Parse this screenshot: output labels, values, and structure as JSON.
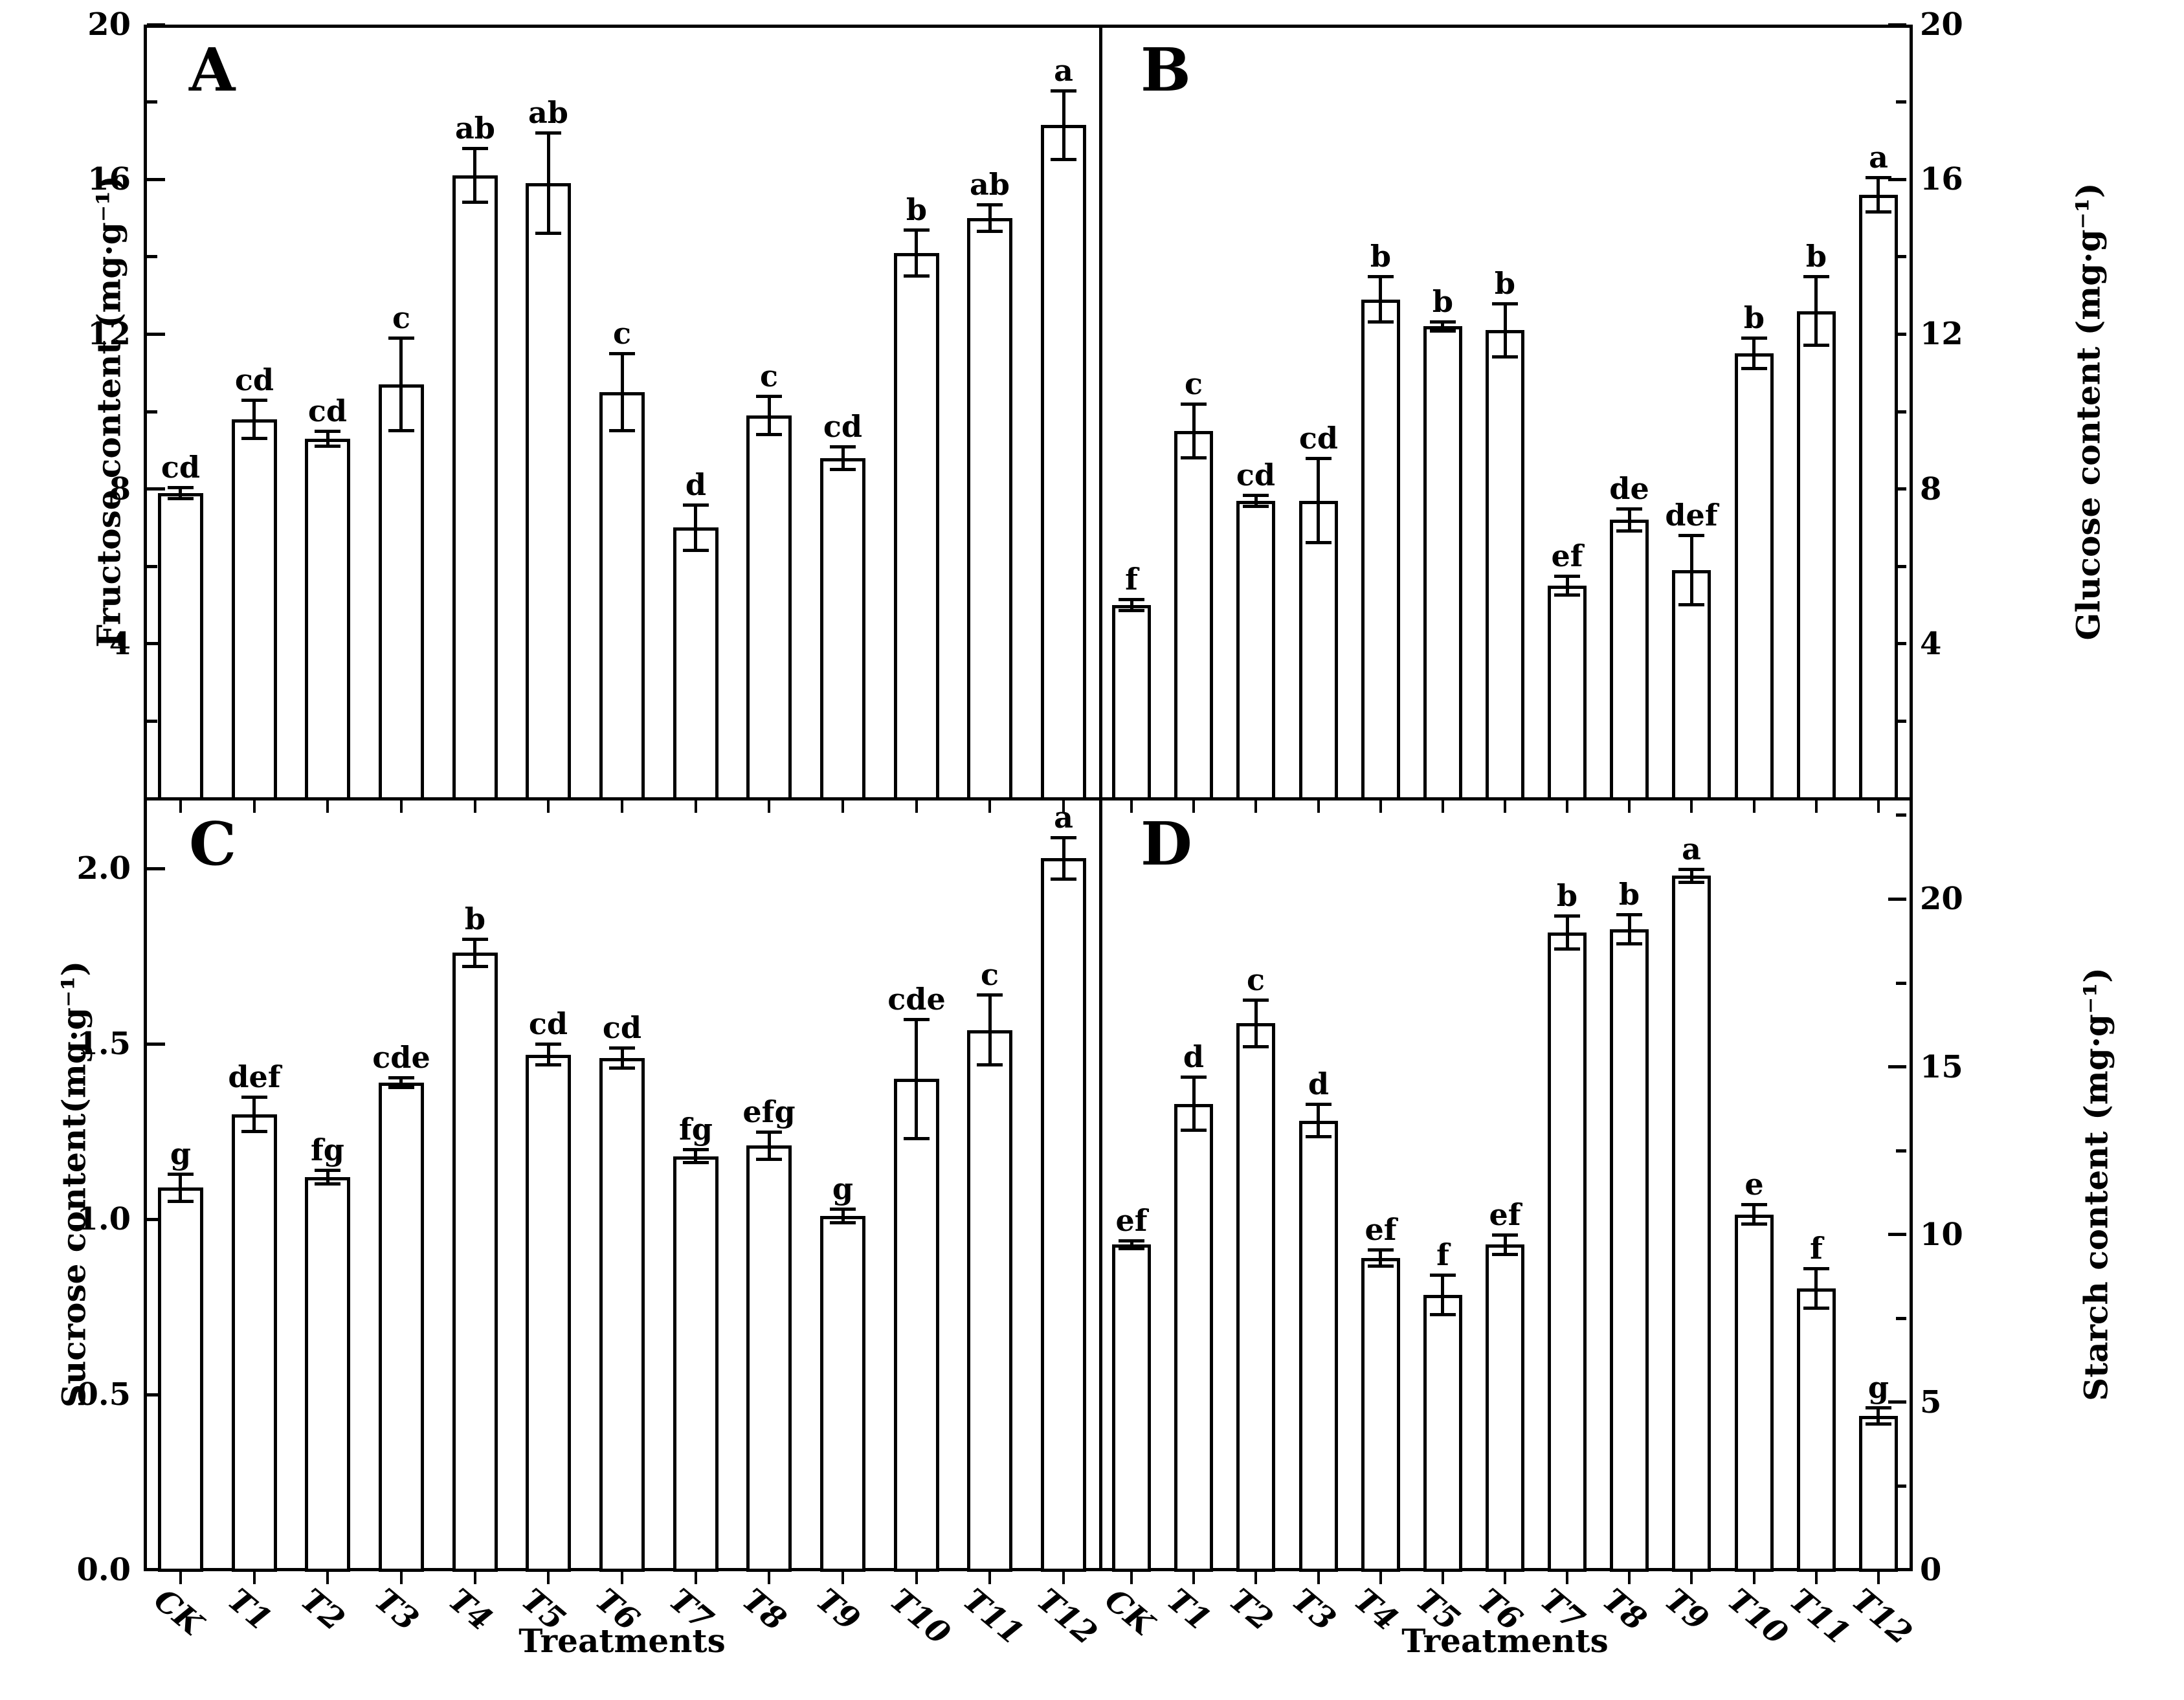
{
  "chart_data": {
    "type": "bar",
    "xlabel": "Treatments",
    "categories": [
      "CK",
      "T1",
      "T2",
      "T3",
      "T4",
      "T5",
      "T6",
      "T7",
      "T8",
      "T9",
      "T10",
      "T11",
      "T12"
    ],
    "bar_fill": "#ffffff",
    "bar_edge": "#000000",
    "grid": false,
    "legend": null,
    "panels": [
      {
        "id": "A",
        "ylabel": "Fructose content (mg·g⁻¹)",
        "axis_side": "left",
        "ylim": [
          0,
          20
        ],
        "yticks": [
          4,
          8,
          12,
          16,
          20
        ],
        "ytick_labels": [
          "4",
          "8",
          "12",
          "16",
          "20"
        ],
        "minor_tick_step": 2,
        "values": [
          7.9,
          9.8,
          9.3,
          10.7,
          16.1,
          15.9,
          10.5,
          7.0,
          9.9,
          8.8,
          14.1,
          15.0,
          17.4
        ],
        "errors": [
          0.15,
          0.5,
          0.2,
          1.2,
          0.7,
          1.3,
          1.0,
          0.6,
          0.5,
          0.3,
          0.6,
          0.35,
          0.9
        ],
        "sig_letters": [
          "cd",
          "cd",
          "cd",
          "c",
          "ab",
          "ab",
          "c",
          "d",
          "c",
          "cd",
          "b",
          "ab",
          "a"
        ]
      },
      {
        "id": "B",
        "ylabel": "Glucose content (mg·g⁻¹)",
        "axis_side": "right",
        "ylim": [
          0,
          20
        ],
        "yticks": [
          4,
          8,
          12,
          16,
          20
        ],
        "ytick_labels": [
          "4",
          "8",
          "12",
          "16",
          "20"
        ],
        "minor_tick_step": 2,
        "values": [
          5.0,
          9.5,
          7.7,
          7.7,
          12.9,
          12.2,
          12.1,
          5.5,
          7.2,
          5.9,
          11.5,
          12.6,
          15.6
        ],
        "errors": [
          0.15,
          0.7,
          0.15,
          1.1,
          0.6,
          0.12,
          0.7,
          0.25,
          0.3,
          0.9,
          0.4,
          0.9,
          0.45
        ],
        "sig_letters": [
          "f",
          "c",
          "cd",
          "cd",
          "b",
          "b",
          "b",
          "ef",
          "de",
          "def",
          "b",
          "b",
          "a"
        ]
      },
      {
        "id": "C",
        "ylabel": "Sucrose content(mg·g⁻¹)",
        "axis_side": "left",
        "ylim": [
          0,
          2.2
        ],
        "yticks": [
          0,
          0.5,
          1.0,
          1.5,
          2.0
        ],
        "ytick_labels": [
          "0.0",
          "0.5",
          "1.0",
          "1.5",
          "2.0"
        ],
        "minor_tick_step": null,
        "values": [
          1.09,
          1.3,
          1.12,
          1.39,
          1.76,
          1.47,
          1.46,
          1.18,
          1.21,
          1.01,
          1.4,
          1.54,
          2.03
        ],
        "errors": [
          0.04,
          0.05,
          0.02,
          0.015,
          0.04,
          0.03,
          0.03,
          0.02,
          0.04,
          0.02,
          0.17,
          0.1,
          0.06
        ],
        "sig_letters": [
          "g",
          "def",
          "fg",
          "cde",
          "b",
          "cd",
          "cd",
          "fg",
          "efg",
          "g",
          "cde",
          "c",
          "a"
        ]
      },
      {
        "id": "D",
        "ylabel": "Starch content (mg·g⁻¹)",
        "axis_side": "right",
        "ylim": [
          0,
          23
        ],
        "yticks": [
          0,
          5,
          10,
          15,
          20
        ],
        "ytick_labels": [
          "0",
          "5",
          "10",
          "15",
          "20"
        ],
        "minor_tick_step": 2.5,
        "values": [
          9.7,
          13.9,
          16.3,
          13.4,
          9.3,
          8.2,
          9.7,
          19.0,
          19.1,
          20.7,
          10.6,
          8.4,
          4.6
        ],
        "errors": [
          0.12,
          0.8,
          0.7,
          0.5,
          0.25,
          0.6,
          0.3,
          0.5,
          0.45,
          0.2,
          0.3,
          0.6,
          0.25
        ],
        "sig_letters": [
          "ef",
          "d",
          "c",
          "d",
          "ef",
          "f",
          "ef",
          "b",
          "b",
          "a",
          "e",
          "f",
          "g"
        ]
      }
    ]
  }
}
